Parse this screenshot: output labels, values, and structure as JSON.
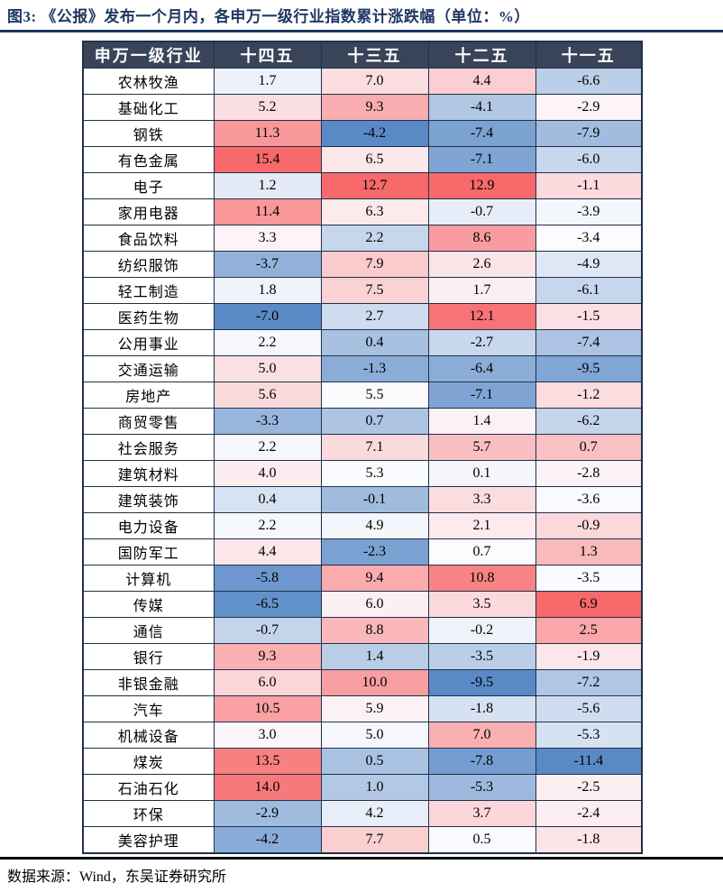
{
  "title": {
    "text": "图3:  《公报》发布一个月内，各申万一级行业指数累计涨跌幅（单位：%）"
  },
  "footer": {
    "source": "数据来源：Wind，东吴证券研究所"
  },
  "colors": {
    "title_color": "#1F3864",
    "rule_color": "#17375E",
    "grid_color": "#203049",
    "header_bg": "#3A4458",
    "header_text": "#FFFFFF",
    "scale_min_blue": "#5A8AC6",
    "scale_mid_white": "#FCFCFF",
    "scale_max_red": "#F8696B"
  },
  "chart_data": {
    "type": "heatmap",
    "title": "《公报》发布一个月内，各申万一级行业指数累计涨跌幅",
    "unit": "%",
    "row_header": "申万一级行业",
    "columns": [
      "十四五",
      "十三五",
      "十二五",
      "十一五"
    ],
    "rows": [
      "农林牧渔",
      "基础化工",
      "钢铁",
      "有色金属",
      "电子",
      "家用电器",
      "食品饮料",
      "纺织服饰",
      "轻工制造",
      "医药生物",
      "公用事业",
      "交通运输",
      "房地产",
      "商贸零售",
      "社会服务",
      "建筑材料",
      "建筑装饰",
      "电力设备",
      "国防军工",
      "计算机",
      "传媒",
      "通信",
      "银行",
      "非银金融",
      "汽车",
      "机械设备",
      "煤炭",
      "石油石化",
      "环保",
      "美容护理"
    ],
    "values": [
      [
        1.7,
        7.0,
        4.4,
        -6.6
      ],
      [
        5.2,
        9.3,
        -4.1,
        -2.9
      ],
      [
        11.3,
        -4.2,
        -7.4,
        -7.9
      ],
      [
        15.4,
        6.5,
        -7.1,
        -6.0
      ],
      [
        1.2,
        12.7,
        12.9,
        -1.1
      ],
      [
        11.4,
        6.3,
        -0.7,
        -3.9
      ],
      [
        3.3,
        2.2,
        8.6,
        -3.4
      ],
      [
        -3.7,
        7.9,
        2.6,
        -4.9
      ],
      [
        1.8,
        7.5,
        1.7,
        -6.1
      ],
      [
        -7.0,
        2.7,
        12.1,
        -1.5
      ],
      [
        2.2,
        0.4,
        -2.7,
        -7.4
      ],
      [
        5.0,
        -1.3,
        -6.4,
        -9.5
      ],
      [
        5.6,
        5.5,
        -7.1,
        -1.2
      ],
      [
        -3.3,
        0.7,
        1.4,
        -6.2
      ],
      [
        2.2,
        7.1,
        5.7,
        0.7
      ],
      [
        4.0,
        5.3,
        0.1,
        -2.8
      ],
      [
        0.4,
        -0.1,
        3.3,
        -3.6
      ],
      [
        2.2,
        4.9,
        2.1,
        -0.9
      ],
      [
        4.4,
        -2.3,
        0.7,
        1.3
      ],
      [
        -5.8,
        9.4,
        10.8,
        -3.5
      ],
      [
        -6.5,
        6.0,
        3.5,
        6.9
      ],
      [
        -0.7,
        8.8,
        -0.2,
        2.5
      ],
      [
        9.3,
        1.4,
        -3.5,
        -1.9
      ],
      [
        6.0,
        10.0,
        -9.5,
        -7.2
      ],
      [
        10.5,
        5.9,
        -1.8,
        -5.6
      ],
      [
        3.0,
        5.0,
        7.0,
        -5.3
      ],
      [
        13.5,
        0.5,
        -7.8,
        -11.4
      ],
      [
        14.0,
        1.0,
        -5.3,
        -2.5
      ],
      [
        -2.9,
        4.2,
        3.7,
        -2.4
      ],
      [
        -4.2,
        7.7,
        0.5,
        -1.8
      ]
    ],
    "color_scale": {
      "scope": "per-column",
      "min_color": "#5A8AC6",
      "mid_color": "#FCFCFF",
      "max_color": "#F8696B",
      "midpoint": "50th-percentile"
    },
    "legend_position": "none",
    "grid": true
  }
}
